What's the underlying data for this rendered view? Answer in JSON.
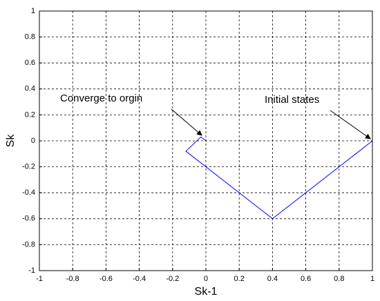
{
  "chart_data": {
    "type": "line",
    "x": [
      1,
      0.4,
      -0.12,
      -0.03,
      0
    ],
    "values": [
      0,
      -0.6,
      -0.08,
      0.03,
      0
    ],
    "color": "#0000ff",
    "xlabel": "Sk-1",
    "ylabel": "Sk",
    "xlim": [
      -1,
      1
    ],
    "ylim": [
      -1,
      1
    ],
    "xticks": [
      -1,
      -0.8,
      -0.6,
      -0.4,
      -0.2,
      0,
      0.2,
      0.4,
      0.6,
      0.8,
      1
    ],
    "yticks": [
      -1,
      -0.8,
      -0.6,
      -0.4,
      -0.2,
      0,
      0.2,
      0.4,
      0.6,
      0.8,
      1
    ],
    "grid": true,
    "annotations": [
      {
        "text": "Converge to orgin"
      },
      {
        "text": "Initial states"
      }
    ]
  }
}
